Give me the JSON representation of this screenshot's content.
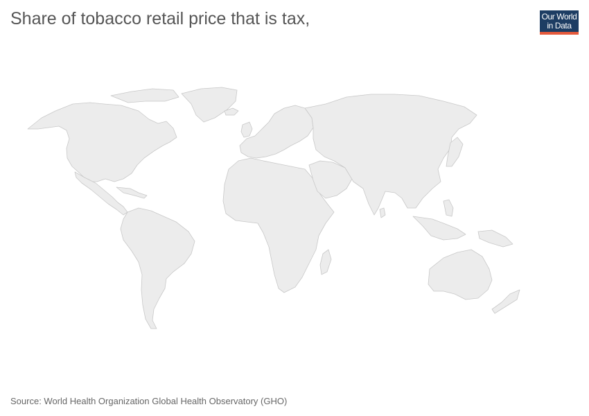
{
  "title": "Share of tobacco retail price that is tax,",
  "logo": {
    "line1": "Our World",
    "line2": "in Data",
    "bg_color": "#1d3d63",
    "accent_color": "#e55a3c"
  },
  "map": {
    "fill_color": "#ececec",
    "border_color": "#c8c8c8",
    "has_data": false
  },
  "source": "Source: World Health Organization Global Health Observatory (GHO)"
}
